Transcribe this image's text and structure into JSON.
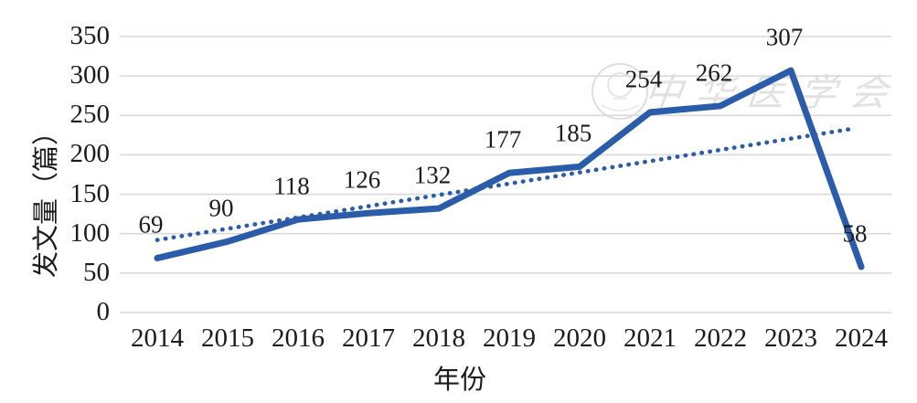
{
  "chart_data": {
    "type": "line",
    "categories": [
      "2014",
      "2015",
      "2016",
      "2017",
      "2018",
      "2019",
      "2020",
      "2021",
      "2022",
      "2023",
      "2024"
    ],
    "series": [
      {
        "name": "发文量",
        "values": [
          69,
          90,
          118,
          126,
          132,
          177,
          185,
          254,
          262,
          307,
          58
        ],
        "style": "solid",
        "data_labels": true
      }
    ],
    "trendline": {
      "style": "dotted",
      "start_value": 92,
      "end_value": 233,
      "description": "linear trend, dotted, same blue as series"
    },
    "xlabel": "年份",
    "ylabel": "发文量（篇）",
    "y_ticks": [
      0,
      50,
      100,
      150,
      200,
      250,
      300,
      350
    ],
    "ylim": [
      0,
      350
    ],
    "grid": "horizontal",
    "legend": "none",
    "title": ""
  },
  "watermark": {
    "text": "中华医学会",
    "seal": "circular-society-seal"
  },
  "colors": {
    "series_line": "#2b5caa",
    "trendline": "#2b5caa",
    "gridline": "#d9d9d9",
    "text": "#1b1b1b",
    "watermark": "#e2e2e2"
  }
}
